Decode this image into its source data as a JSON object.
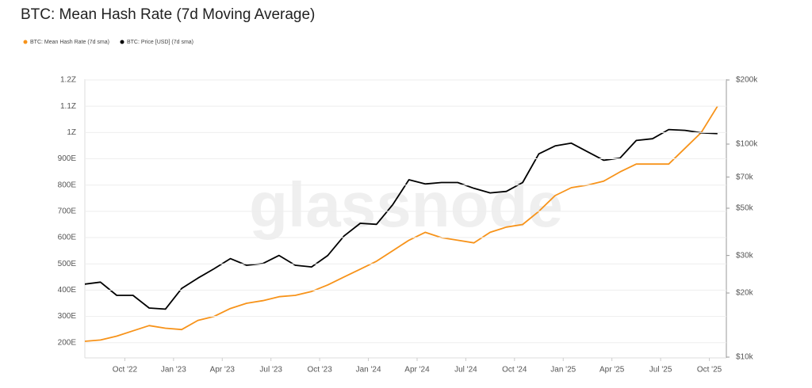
{
  "chart_data": {
    "type": "line",
    "title": "BTC: Mean Hash Rate (7d Moving Average)",
    "watermark": "glassnode",
    "x": [
      "2022-07",
      "2022-08",
      "2022-09",
      "2022-10",
      "2022-11",
      "2022-12",
      "2023-01",
      "2023-02",
      "2023-03",
      "2023-04",
      "2023-05",
      "2023-06",
      "2023-07",
      "2023-08",
      "2023-09",
      "2023-10",
      "2023-11",
      "2023-12",
      "2024-01",
      "2024-02",
      "2024-03",
      "2024-04",
      "2024-05",
      "2024-06",
      "2024-07",
      "2024-08",
      "2024-09",
      "2024-10",
      "2024-11",
      "2024-12",
      "2025-01",
      "2025-02",
      "2025-03",
      "2025-04",
      "2025-05",
      "2025-06",
      "2025-07",
      "2025-08",
      "2025-09",
      "2025-10"
    ],
    "series": [
      {
        "name": "BTC: Mean Hash Rate (7d sma)",
        "color": "#f7931a",
        "axis": "y",
        "values": [
          205,
          210,
          225,
          245,
          265,
          255,
          250,
          285,
          300,
          330,
          350,
          360,
          375,
          380,
          395,
          420,
          450,
          480,
          510,
          550,
          590,
          620,
          600,
          590,
          580,
          620,
          640,
          650,
          700,
          760,
          790,
          800,
          815,
          850,
          880,
          880,
          880,
          940,
          1000,
          1100
        ]
      },
      {
        "name": "BTC: Price [USD] (7d sma)",
        "color": "#000000",
        "axis": "y2",
        "values": [
          22000,
          22500,
          19500,
          19500,
          17000,
          16800,
          21000,
          23500,
          26000,
          29000,
          27000,
          27500,
          30000,
          27000,
          26500,
          30000,
          37000,
          42500,
          42000,
          52000,
          68000,
          65000,
          66000,
          66000,
          62000,
          59000,
          60000,
          66000,
          90000,
          98000,
          101000,
          92000,
          84000,
          86000,
          104000,
          106000,
          117000,
          116000,
          113000,
          112000
        ]
      }
    ],
    "xlim": [
      "2022-07",
      "2025-11"
    ],
    "xticks": [
      {
        "value": "2022-10",
        "label": "Oct '22"
      },
      {
        "value": "2023-01",
        "label": "Jan '23"
      },
      {
        "value": "2023-04",
        "label": "Apr '23"
      },
      {
        "value": "2023-07",
        "label": "Jul '23"
      },
      {
        "value": "2023-10",
        "label": "Oct '23"
      },
      {
        "value": "2024-01",
        "label": "Jan '24"
      },
      {
        "value": "2024-04",
        "label": "Apr '24"
      },
      {
        "value": "2024-07",
        "label": "Jul '24"
      },
      {
        "value": "2024-10",
        "label": "Oct '24"
      },
      {
        "value": "2025-01",
        "label": "Jan '25"
      },
      {
        "value": "2025-04",
        "label": "Apr '25"
      },
      {
        "value": "2025-07",
        "label": "Jul '25"
      },
      {
        "value": "2025-10",
        "label": "Oct '25"
      }
    ],
    "ylim": [
      145,
      1200
    ],
    "yticks": [
      {
        "value": 200,
        "label": "200E"
      },
      {
        "value": 300,
        "label": "300E"
      },
      {
        "value": 400,
        "label": "400E"
      },
      {
        "value": 500,
        "label": "500E"
      },
      {
        "value": 600,
        "label": "600E"
      },
      {
        "value": 700,
        "label": "700E"
      },
      {
        "value": 800,
        "label": "800E"
      },
      {
        "value": 900,
        "label": "900E"
      },
      {
        "value": 1000,
        "label": "1Z"
      },
      {
        "value": 1100,
        "label": "1.1Z"
      },
      {
        "value": 1200,
        "label": "1.2Z"
      }
    ],
    "y2lim": [
      10000,
      200000
    ],
    "y2log": true,
    "y2ticks": [
      {
        "value": 10000,
        "label": "$10k"
      },
      {
        "value": 20000,
        "label": "$20k"
      },
      {
        "value": 30000,
        "label": "$30k"
      },
      {
        "value": 50000,
        "label": "$50k"
      },
      {
        "value": 70000,
        "label": "$70k"
      },
      {
        "value": 100000,
        "label": "$100k"
      },
      {
        "value": 200000,
        "label": "$200k"
      }
    ],
    "grid": true
  }
}
